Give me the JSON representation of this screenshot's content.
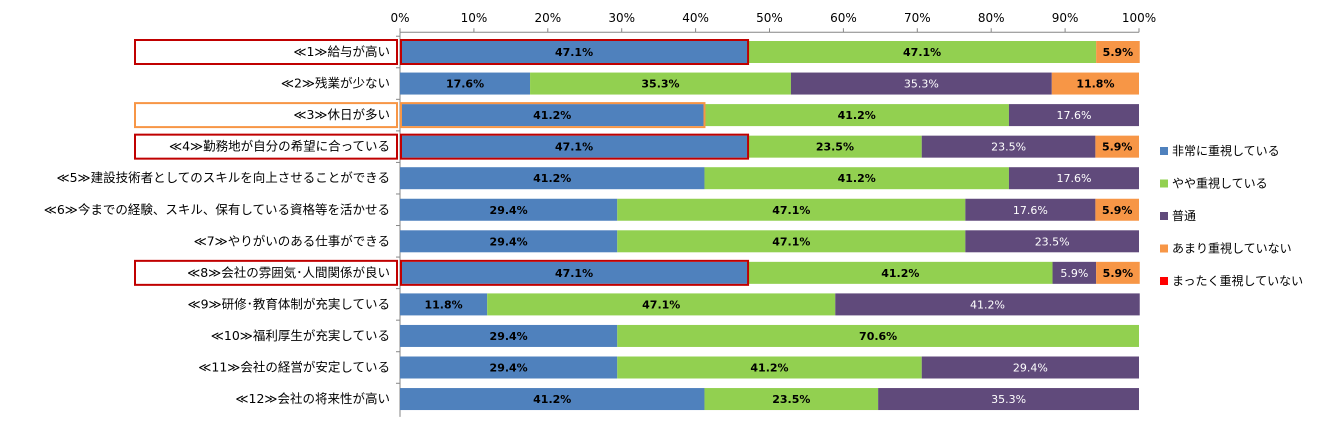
{
  "chart_data": {
    "type": "bar",
    "orientation": "horizontal",
    "stacked": true,
    "percent_stacked": true,
    "title": "",
    "xlabel": "",
    "ylabel": "",
    "xlim": [
      0,
      100
    ],
    "x_tick_labels": [
      "0%",
      "10%",
      "20%",
      "30%",
      "40%",
      "50%",
      "60%",
      "70%",
      "80%",
      "90%",
      "100%"
    ],
    "x_axis_position": "top",
    "grid": false,
    "legend_position": "right",
    "categories": [
      "≪1≫給与が高い",
      "≪2≫残業が少ない",
      "≪3≫休日が多い",
      "≪4≫勤務地が自分の希望に合っている",
      "≪5≫建設技術者としてのスキルを向上させることができる",
      "≪6≫今までの経験、スキル、保有している資格等を活かせる",
      "≪7≫やりがいのある仕事ができる",
      "≪8≫会社の雰囲気･人間関係が良い",
      "≪9≫研修･教育体制が充実している",
      "≪10≫福利厚生が充実している",
      "≪11≫会社の経営が安定している",
      "≪12≫会社の将来性が高い"
    ],
    "series": [
      {
        "name": "非常に重視している",
        "color": "#4F81BD",
        "values": [
          47.1,
          17.6,
          41.2,
          47.1,
          41.2,
          29.4,
          29.4,
          47.1,
          11.8,
          29.4,
          29.4,
          41.2
        ],
        "labels": [
          "47.1%",
          "17.6%",
          "41.2%",
          "47.1%",
          "41.2%",
          "29.4%",
          "29.4%",
          "47.1%",
          "11.8%",
          "29.4%",
          "29.4%",
          "41.2%"
        ]
      },
      {
        "name": "やや重視している",
        "color": "#92D050",
        "values": [
          47.1,
          35.3,
          41.2,
          23.5,
          41.2,
          47.1,
          47.1,
          41.2,
          47.1,
          70.6,
          41.2,
          23.5
        ],
        "labels": [
          "47.1%",
          "35.3%",
          "41.2%",
          "23.5%",
          "41.2%",
          "47.1%",
          "47.1%",
          "41.2%",
          "47.1%",
          "70.6%",
          "41.2%",
          "23.5%"
        ]
      },
      {
        "name": "普通",
        "color": "#604A7B",
        "values": [
          0,
          35.3,
          17.6,
          23.5,
          17.6,
          17.6,
          23.5,
          5.9,
          41.2,
          0,
          29.4,
          35.3
        ],
        "labels": [
          "",
          "35.3%",
          "17.6%",
          "23.5%",
          "17.6%",
          "17.6%",
          "23.5%",
          "5.9%",
          "41.2%",
          "",
          "29.4%",
          "35.3%"
        ]
      },
      {
        "name": "あまり重視していない",
        "color": "#F79646",
        "values": [
          5.9,
          11.8,
          0,
          5.9,
          0,
          5.9,
          0,
          5.9,
          0,
          0,
          0,
          0
        ],
        "labels": [
          "5.9%",
          "11.8%",
          "",
          "5.9%",
          "",
          "5.9%",
          "",
          "5.9%",
          "",
          "",
          "",
          ""
        ]
      },
      {
        "name": "まったく重視していない",
        "color": "#FF0000",
        "values": [
          0,
          0,
          0,
          0,
          0,
          0,
          0,
          0,
          0,
          0,
          0,
          0
        ],
        "labels": [
          "",
          "",
          "",
          "",
          "",
          "",
          "",
          "",
          "",
          "",
          "",
          ""
        ]
      }
    ],
    "highlights": [
      {
        "row": 0,
        "color": "#C00000"
      },
      {
        "row": 2,
        "color": "#F79646"
      },
      {
        "row": 3,
        "color": "#C00000"
      },
      {
        "row": 7,
        "color": "#C00000"
      }
    ]
  }
}
